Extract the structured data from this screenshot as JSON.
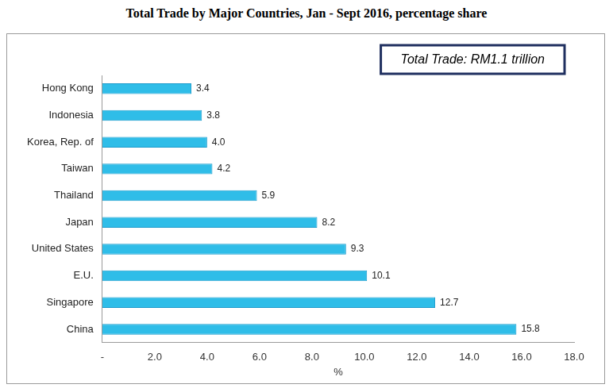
{
  "chart_data": {
    "type": "bar",
    "orientation": "horizontal",
    "title": "Total Trade by Major Countries, Jan - Sept 2016, percentage share",
    "x_label": "%",
    "annotations": [
      "Total Trade: RM1.1 trillion"
    ],
    "categories": [
      "Hong Kong",
      "Indonesia",
      "Korea, Rep. of",
      "Taiwan",
      "Thailand",
      "Japan",
      "United States",
      "E.U.",
      "Singapore",
      "China"
    ],
    "values": [
      3.4,
      3.8,
      4.0,
      4.2,
      5.9,
      8.2,
      9.3,
      10.1,
      12.7,
      15.8
    ],
    "value_labels": [
      "3.4",
      "3.8",
      "4.0",
      "4.2",
      "5.9",
      "8.2",
      "9.3",
      "10.1",
      "12.7",
      "15.8"
    ],
    "data_labels": true,
    "color": "#2fbde8",
    "xlim": [
      0,
      18
    ],
    "xticks": [
      {
        "value": 0,
        "label": "-"
      },
      {
        "value": 2,
        "label": "2.0"
      },
      {
        "value": 4,
        "label": "4.0"
      },
      {
        "value": 6,
        "label": "6.0"
      },
      {
        "value": 8,
        "label": "8.0"
      },
      {
        "value": 10,
        "label": "10.0"
      },
      {
        "value": 12,
        "label": "12.0"
      },
      {
        "value": 14,
        "label": "14.0"
      },
      {
        "value": 16,
        "label": "16.0"
      },
      {
        "value": 18,
        "label": "18.0"
      }
    ],
    "grid": false
  }
}
